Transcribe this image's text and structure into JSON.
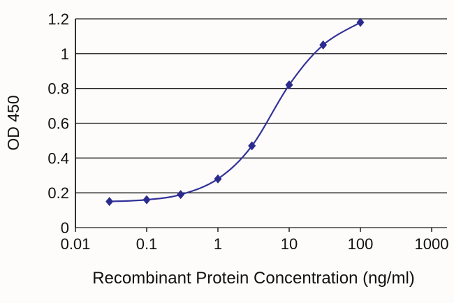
{
  "chart_data": {
    "type": "line",
    "title": "",
    "xlabel": "Recombinant Protein Concentration (ng/ml)",
    "ylabel": "OD 450",
    "x_scale": "log",
    "xlim": [
      0.01,
      1000
    ],
    "ylim": [
      0,
      1.2
    ],
    "x_ticks": [
      0.01,
      0.1,
      1,
      10,
      100,
      1000
    ],
    "x_tick_labels": [
      "0.01",
      "0.1",
      "1",
      "10",
      "100",
      "1000"
    ],
    "y_ticks": [
      0,
      0.2,
      0.4,
      0.6,
      0.8,
      1,
      1.2
    ],
    "y_tick_labels": [
      "0",
      "0.2",
      "0.4",
      "0.6",
      "0.8",
      "1",
      "1.2"
    ],
    "grid": "horizontal",
    "legend": "none",
    "series": [
      {
        "marker": "diamond",
        "color": "#333399",
        "marker_color": "#2b2b8f",
        "x": [
          0.03,
          0.1,
          0.3,
          1,
          3,
          10,
          30,
          100
        ],
        "y": [
          0.15,
          0.16,
          0.19,
          0.28,
          0.47,
          0.82,
          1.05,
          1.18
        ]
      }
    ],
    "colors": {
      "grid": "#1c1c1c",
      "axis": "#1c1c1c",
      "text": "#111111"
    }
  }
}
